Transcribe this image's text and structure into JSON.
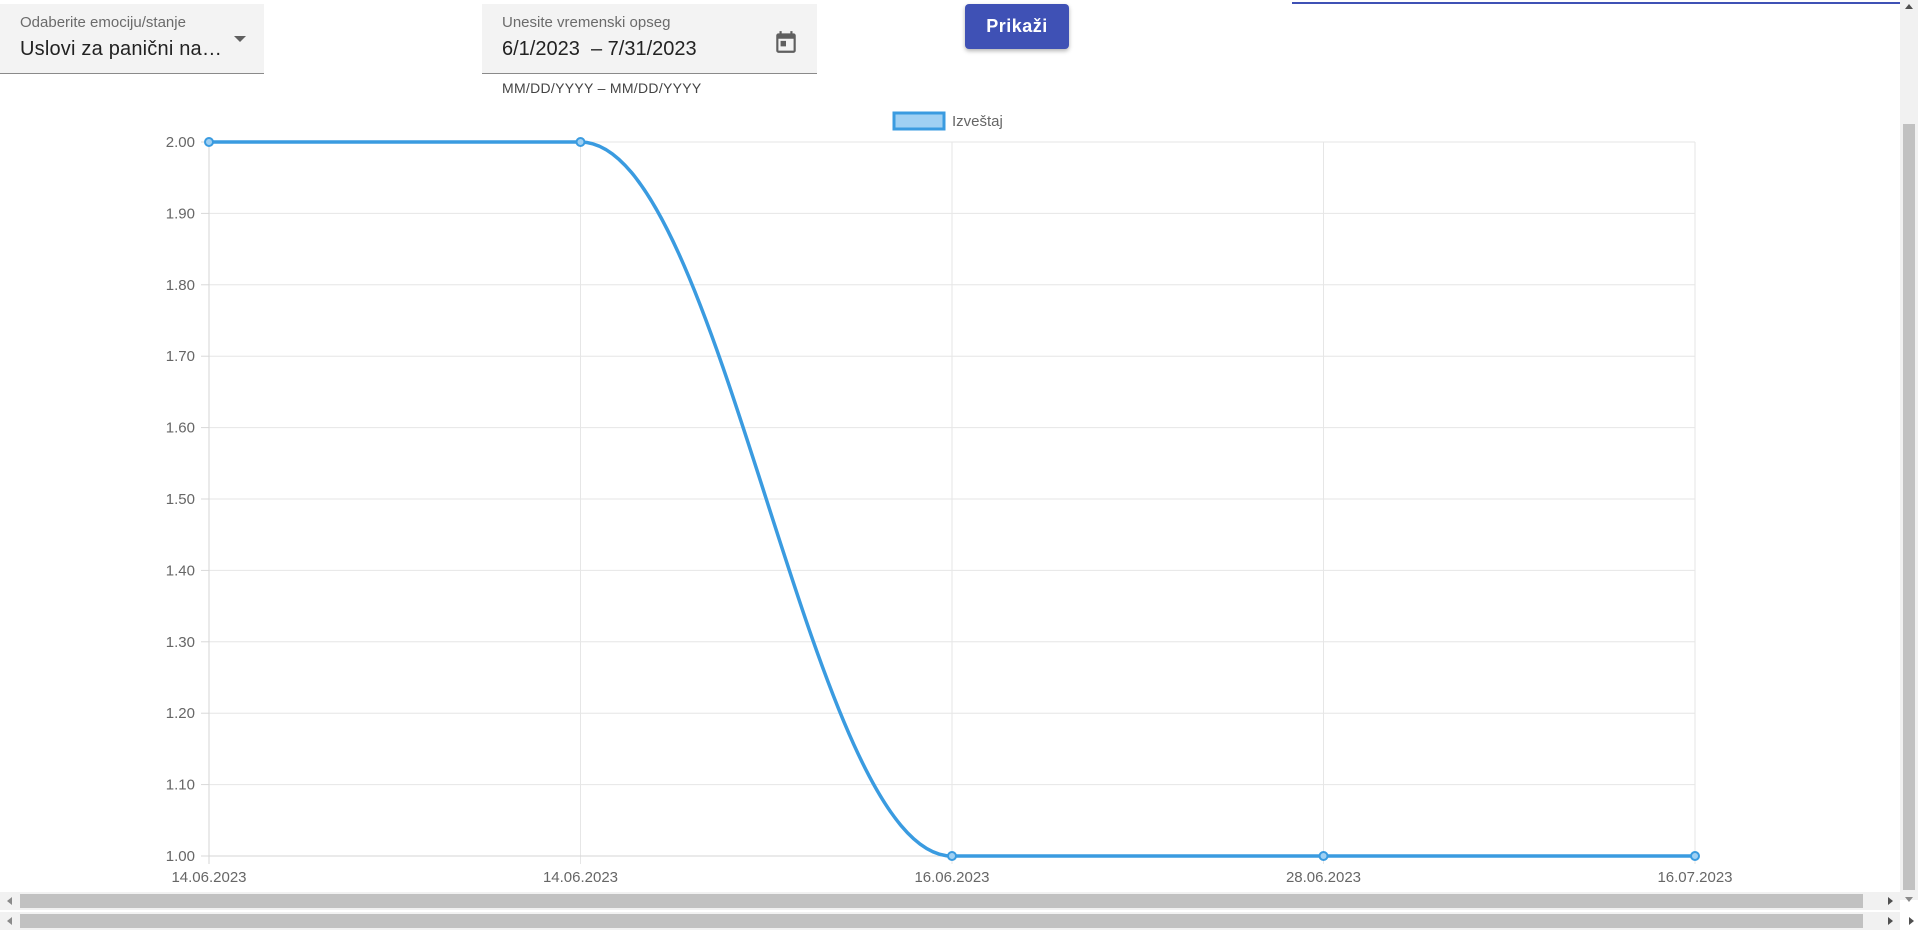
{
  "filters": {
    "emotion_label": "Odaberite emociju/stanje",
    "emotion_value": "Uslovi za panični na…",
    "date_label": "Unesite vremenski opseg",
    "date_start": "6/1/2023",
    "date_end": "7/31/2023",
    "date_separator": "–",
    "date_hint": "MM/DD/YYYY – MM/DD/YYYY",
    "calendar_icon": "calendar-icon"
  },
  "toolbar": {
    "show_label": "Prikaži"
  },
  "colors": {
    "accent": "#3f51b5",
    "series": "#3a9be0",
    "series_fill": "#9fd0f3"
  },
  "chart_data": {
    "type": "line",
    "categories": [
      "14.06.2023",
      "14.06.2023",
      "16.06.2023",
      "28.06.2023",
      "16.07.2023"
    ],
    "series": [
      {
        "name": "Izveštaj",
        "values": [
          2.0,
          2.0,
          1.0,
          1.0,
          1.0
        ]
      }
    ],
    "ylim": [
      1.0,
      2.0
    ],
    "yticks": [
      2.0,
      1.9,
      1.8,
      1.7,
      1.6,
      1.5,
      1.4,
      1.3,
      1.2,
      1.1,
      1.0
    ],
    "grid": true,
    "legend_position": "top-center",
    "smooth": true
  }
}
